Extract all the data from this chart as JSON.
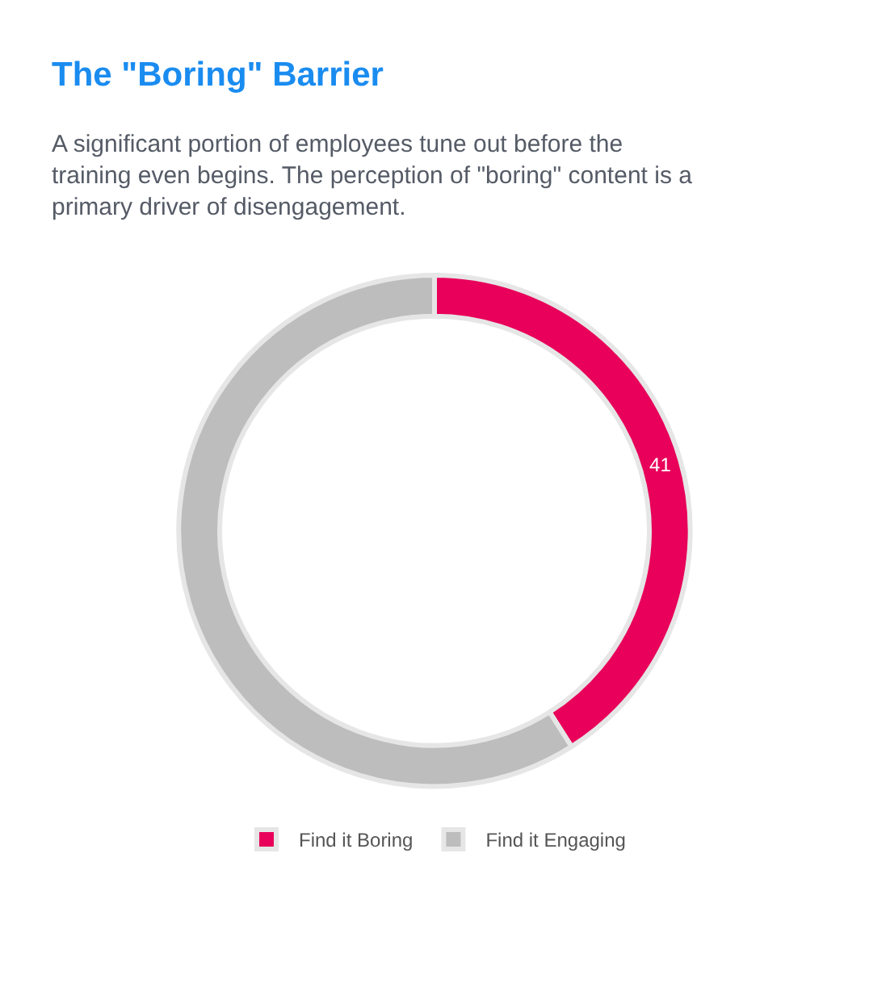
{
  "chart_data": {
    "type": "donut",
    "title": "The \"Boring\" Barrier",
    "subtitle": "A significant portion of employees tune out before the training even begins. The perception of \"boring\" content is a primary driver of disengagement.",
    "categories": [
      "Find it Boring",
      "Find it Engaging"
    ],
    "values": [
      41,
      59
    ],
    "colors": [
      "#e8005a",
      "#bdbdbd"
    ],
    "value_labels": [
      "41",
      null
    ],
    "legend": "bottom"
  }
}
